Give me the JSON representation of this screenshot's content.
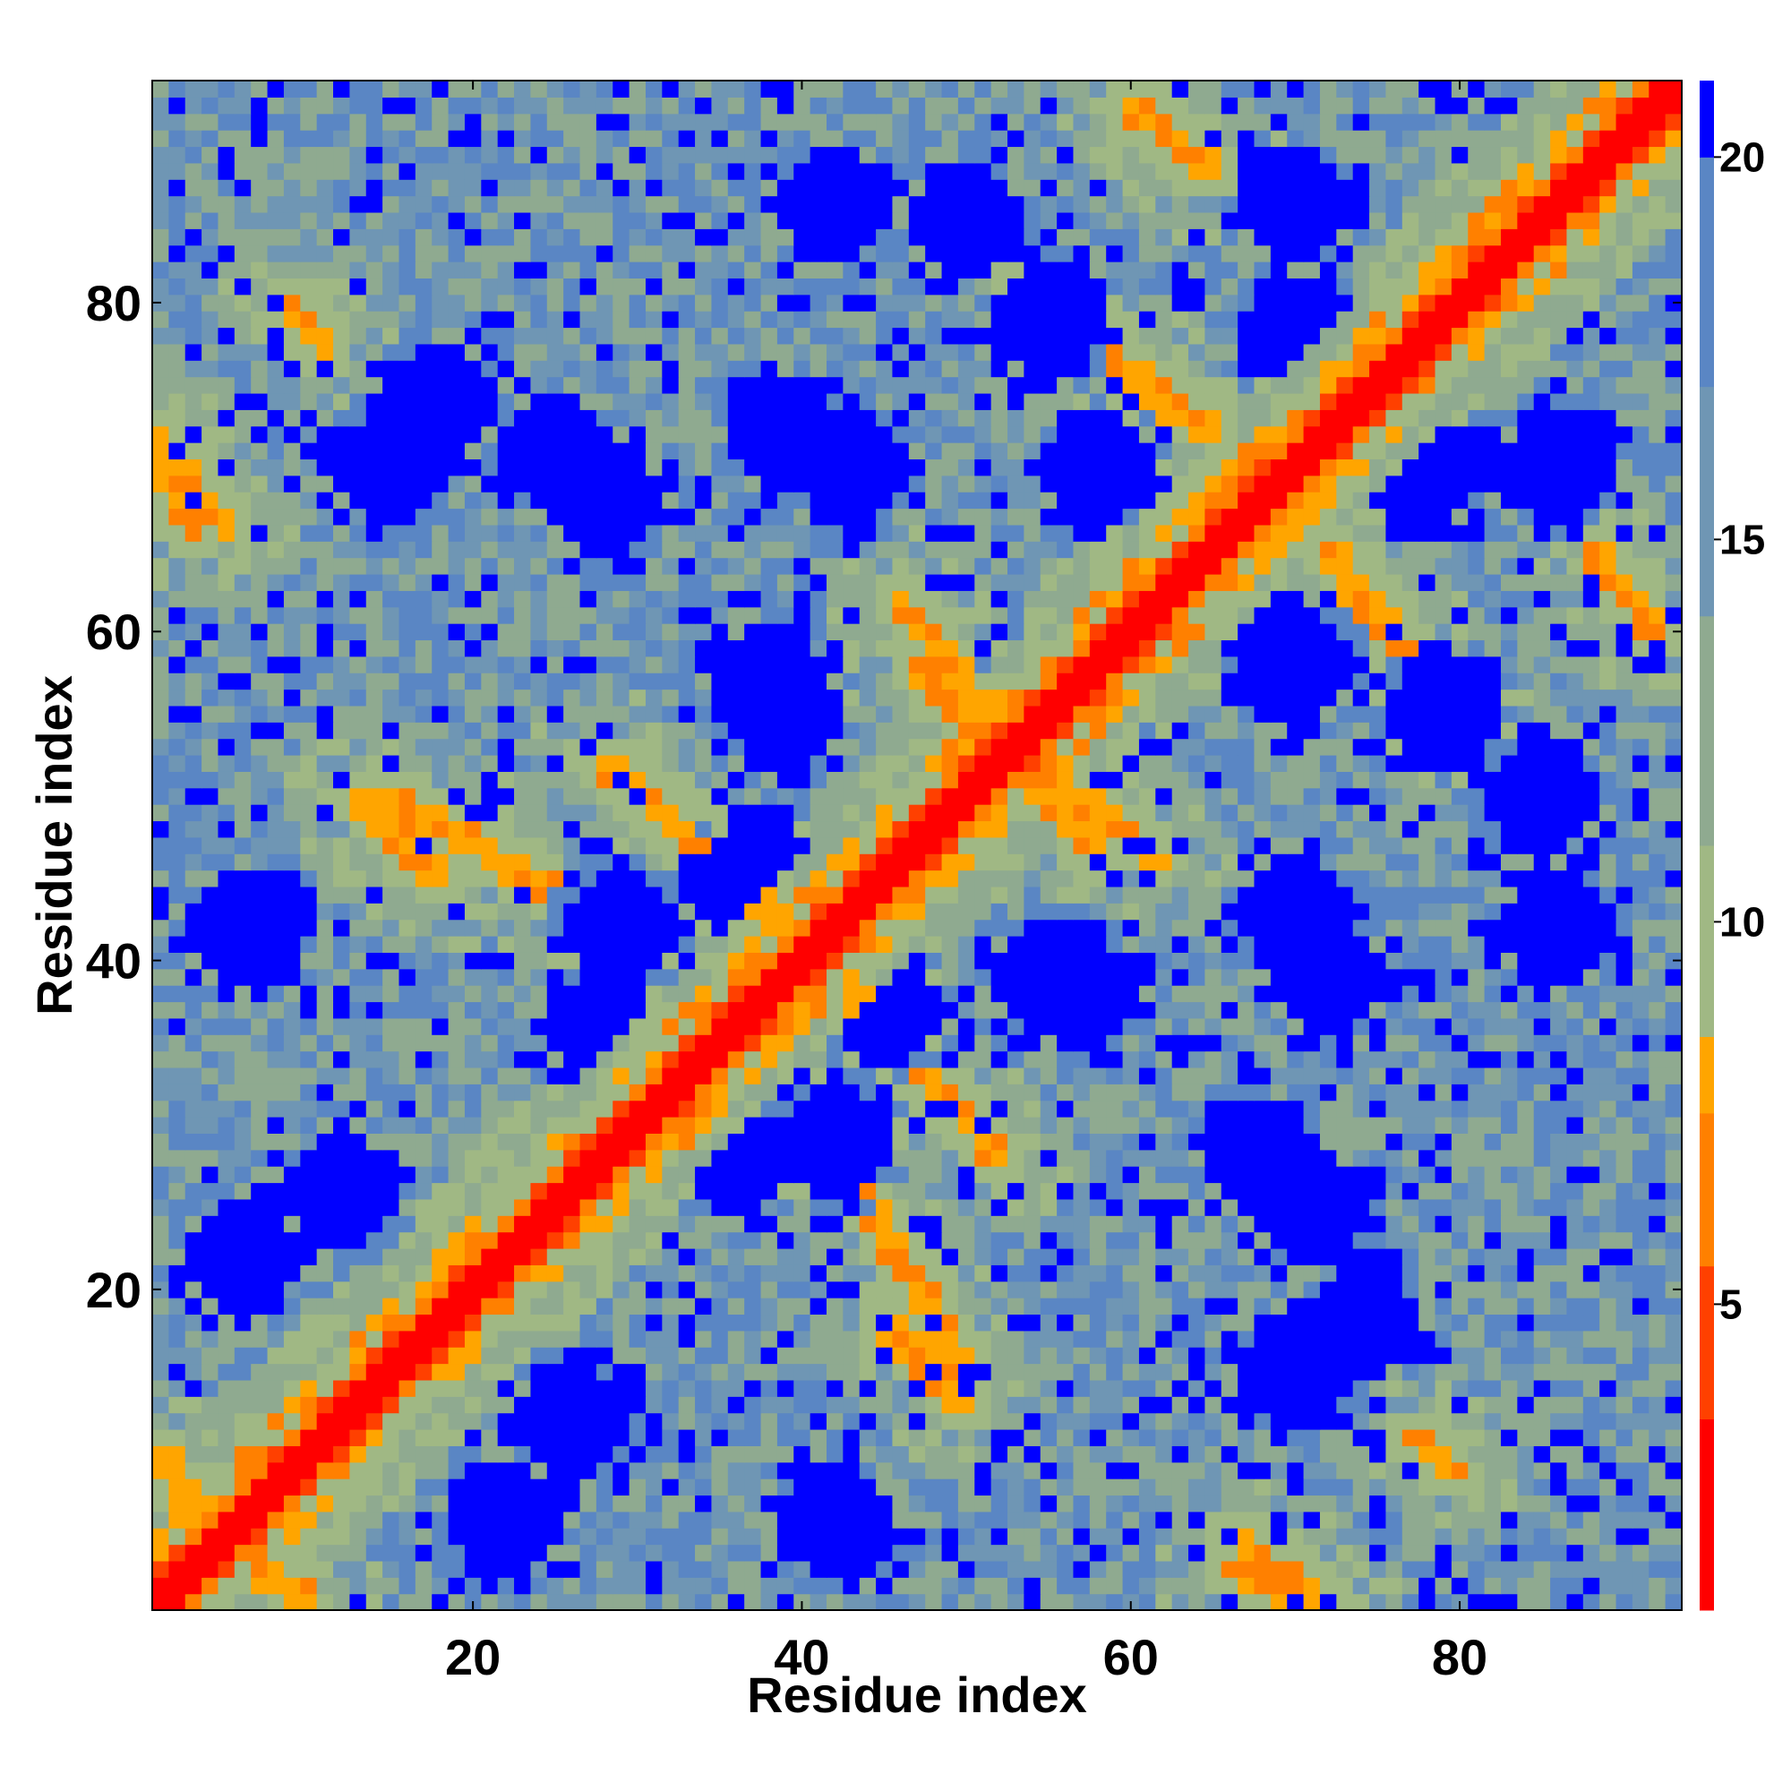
{
  "chart_data": {
    "type": "heatmap",
    "title": "",
    "xlabel": "Residue index",
    "ylabel": "Residue index",
    "n_residues": 93,
    "xlim": [
      0.5,
      93.5
    ],
    "ylim": [
      0.5,
      93.5
    ],
    "x_ticks": [
      20,
      40,
      60,
      80
    ],
    "y_ticks": [
      20,
      40,
      60,
      80
    ],
    "colorbar": {
      "position": "right",
      "range": [
        1,
        21
      ],
      "ticks": [
        5,
        10,
        15,
        20
      ],
      "bands": [
        {
          "from": 1,
          "to": 3.5,
          "color": "#ff0000"
        },
        {
          "from": 3.5,
          "to": 5.5,
          "color": "#ff4000"
        },
        {
          "from": 5.5,
          "to": 7.5,
          "color": "#ff8000"
        },
        {
          "from": 7.5,
          "to": 8.5,
          "color": "#ffa500"
        },
        {
          "from": 8.5,
          "to": 11,
          "color": "#a0b884"
        },
        {
          "from": 11,
          "to": 14,
          "color": "#8faa90"
        },
        {
          "from": 14,
          "to": 17,
          "color": "#6f96b4"
        },
        {
          "from": 17,
          "to": 20,
          "color": "#5a86c4"
        },
        {
          "from": 20,
          "to": 21,
          "color": "#0000ff"
        }
      ]
    },
    "structure": {
      "diagonal_value": 1,
      "far_value": 21,
      "contact_bands_i_j": [
        [
          [
            1,
            10
          ],
          [
            8,
            2
          ]
        ],
        [
          [
            19,
            20
          ],
          [
            27,
            29
          ]
        ],
        [
          [
            43,
            38
          ],
          [
            52,
            28
          ]
        ],
        [
          [
            45,
            18
          ],
          [
            50,
            13
          ]
        ],
        [
          [
            15,
            50
          ],
          [
            27,
            43
          ]
        ],
        [
          [
            32,
            48
          ],
          [
            39,
            43
          ]
        ],
        [
          [
            47,
            58
          ],
          [
            52,
            53
          ]
        ],
        [
          [
            54,
            52
          ],
          [
            62,
            46
          ]
        ],
        [
          [
            55,
            80
          ],
          [
            63,
            73
          ]
        ],
        [
          [
            64,
            68
          ],
          [
            71,
            73
          ]
        ],
        [
          [
            72,
            65
          ],
          [
            79,
            56
          ]
        ],
        [
          [
            66,
            3
          ],
          [
            70,
            1
          ]
        ],
        [
          [
            1,
            72
          ],
          [
            5,
            66
          ]
        ],
        [
          [
            88,
            65
          ],
          [
            92,
            60
          ]
        ],
        [
          [
            77,
            11
          ],
          [
            80,
            9
          ]
        ]
      ],
      "empty_regions_center": [
        [
          28,
          68
        ],
        [
          39,
          55
        ],
        [
          29,
          42
        ],
        [
          58,
          70
        ],
        [
          43,
          70
        ],
        [
          78,
          70
        ],
        [
          36,
          28
        ],
        [
          57,
          55
        ],
        [
          79,
          55
        ],
        [
          57,
          38
        ],
        [
          37,
          45
        ],
        [
          72,
          39
        ],
        [
          71,
          25
        ],
        [
          6,
          42
        ],
        [
          86,
          42
        ],
        [
          6,
          22
        ],
        [
          26,
          12
        ],
        [
          74,
          18
        ],
        [
          50,
          85
        ],
        [
          86,
          70
        ],
        [
          15,
          70
        ],
        [
          5,
          5
        ]
      ]
    }
  }
}
